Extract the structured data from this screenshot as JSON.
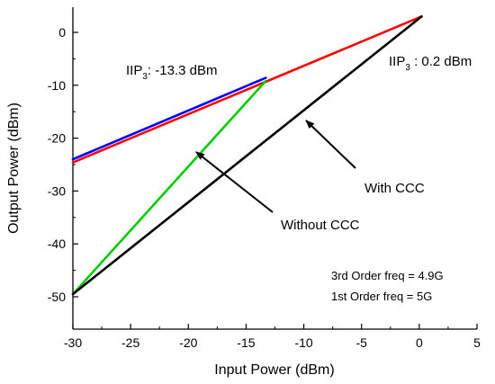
{
  "chart_data": {
    "type": "line",
    "xlabel": "Input Power (dBm)",
    "ylabel": "Output Power (dBm)",
    "xlim": [
      -30,
      5
    ],
    "ylim": [
      -50,
      5
    ],
    "xticks": [
      -30,
      -25,
      -20,
      -15,
      -10,
      -5,
      0,
      5
    ],
    "yticks": [
      0,
      -10,
      -20,
      -30,
      -40,
      -50
    ],
    "grid": false,
    "series": [
      {
        "color": "#0000ff",
        "x": [
          -30,
          -13.3
        ],
        "y": [
          -24.0,
          -8.6
        ]
      },
      {
        "color": "#ff0000",
        "x": [
          -30,
          0.2
        ],
        "y": [
          -24.6,
          3.0
        ]
      },
      {
        "color": "#00cc00",
        "x": [
          -30,
          -13.3
        ],
        "y": [
          -49.5,
          -9.2
        ]
      },
      {
        "color": "#000000",
        "x": [
          -30,
          0.2
        ],
        "y": [
          -49.5,
          3.0
        ]
      }
    ],
    "annotations": {
      "iip3_left": {
        "main": "IIP",
        "sub": "3",
        "rest": ": -13.3 dBm"
      },
      "iip3_right": {
        "main": "IIP",
        "sub": "3",
        "rest": " : 0.2 dBm"
      },
      "with_ccc": "With CCC",
      "without_ccc": "Without CCC",
      "freq_3rd": "3rd Order freq = 4.9G",
      "freq_1st": "1st Order freq = 5G"
    }
  }
}
